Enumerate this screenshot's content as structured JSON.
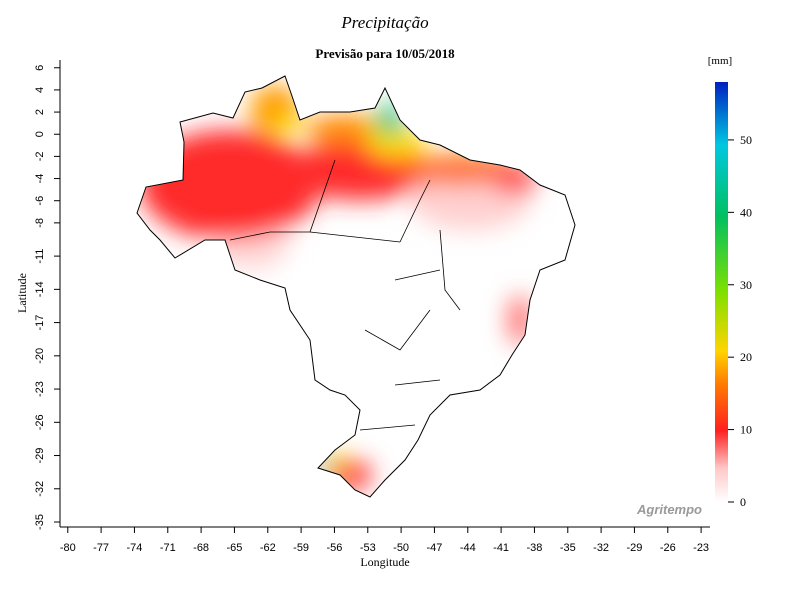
{
  "title": "Precipitação",
  "subtitle": "Previsão para 10/05/2018",
  "x_label": "Longitude",
  "y_label": "Latitude",
  "xlim": [
    -80.7,
    -22.2
  ],
  "xticks": [
    -80,
    -77,
    -74,
    -71,
    -68,
    -65,
    -62,
    -59,
    -56,
    -53,
    -50,
    -47,
    -44,
    -41,
    -38,
    -35,
    -32,
    -29,
    -26,
    -23
  ],
  "ylim": [
    -35.45,
    6.7
  ],
  "yticks": [
    6,
    4,
    2,
    0,
    -2,
    -4,
    -6,
    -8,
    -11,
    -14,
    -17,
    -20,
    -23,
    -26,
    -29,
    -32,
    -35
  ],
  "colorbar": {
    "label": "[mm]",
    "lim": [
      0,
      58
    ],
    "ticks": [
      0,
      10,
      20,
      30,
      40,
      50
    ]
  },
  "watermark": "Agritempo"
}
